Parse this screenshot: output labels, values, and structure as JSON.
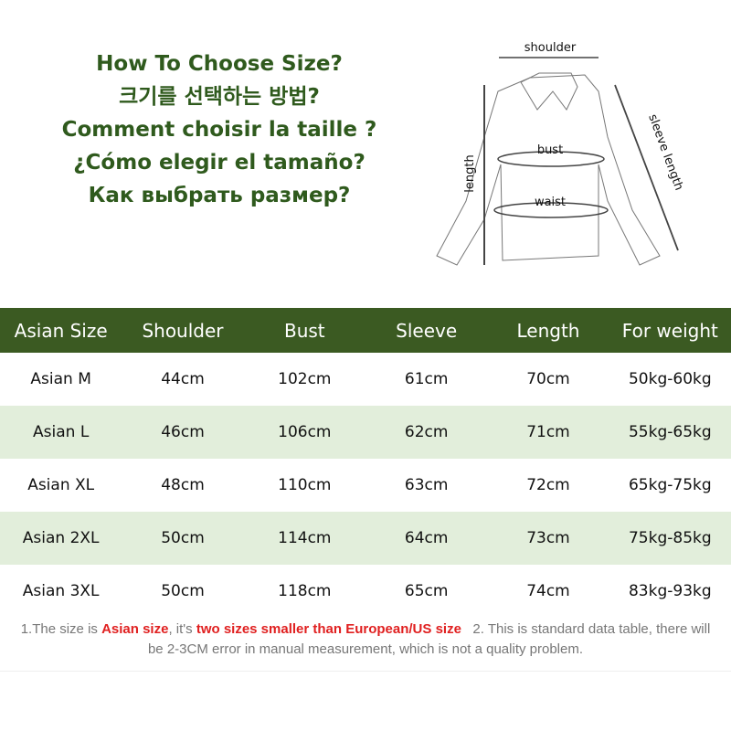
{
  "titles": [
    "How To Choose Size?",
    "크기를 선택하는 방법?",
    "Comment choisir la taille ?",
    "¿Cómo elegir el tamaño?",
    "Как выбрать размер?"
  ],
  "diagram": {
    "shoulder": "shoulder",
    "bust": "bust",
    "waist": "waist",
    "length": "length",
    "sleeve": "sleeve length"
  },
  "table": {
    "headers": [
      "Asian Size",
      "Shoulder",
      "Bust",
      "Sleeve",
      "Length",
      "For weight"
    ],
    "rows": [
      [
        "Asian M",
        "44cm",
        "102cm",
        "61cm",
        "70cm",
        "50kg-60kg"
      ],
      [
        "Asian L",
        "46cm",
        "106cm",
        "62cm",
        "71cm",
        "55kg-65kg"
      ],
      [
        "Asian XL",
        "48cm",
        "110cm",
        "63cm",
        "72cm",
        "65kg-75kg"
      ],
      [
        "Asian 2XL",
        "50cm",
        "114cm",
        "64cm",
        "73cm",
        "75kg-85kg"
      ],
      [
        "Asian 3XL",
        "50cm",
        "118cm",
        "65cm",
        "74cm",
        "83kg-93kg"
      ]
    ]
  },
  "colors": {
    "header": "#3b5a22",
    "row_alt": "#e2eedb",
    "title": "#2f5a1d",
    "highlight": "#e02020"
  },
  "footer": {
    "p1": "1.The size is ",
    "p2": "Asian size",
    "p3": ", it's ",
    "p4": "two sizes smaller than European/US size",
    "p5": "   2. This is standard data table, there will",
    "line2": "be 2-3CM error in manual measurement, which is not a quality problem."
  }
}
